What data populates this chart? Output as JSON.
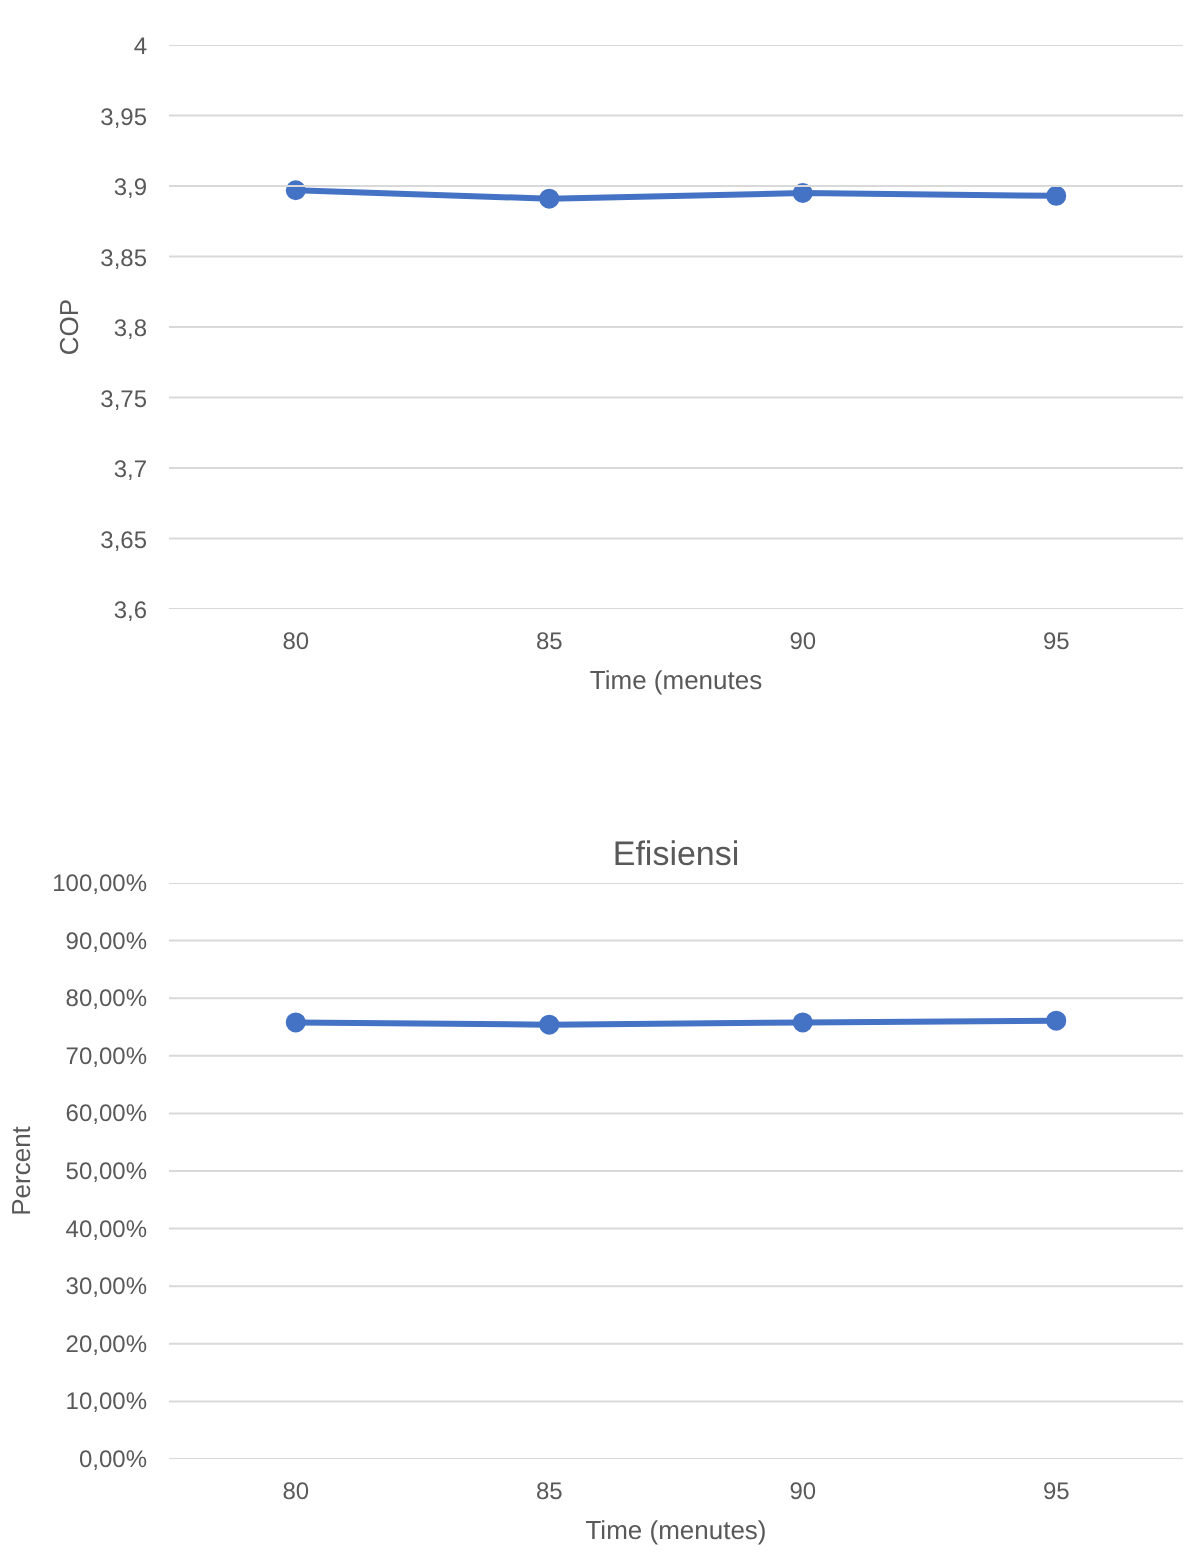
{
  "chart_data": [
    {
      "type": "line",
      "ylabel": "COP",
      "xlabel": "Time (menutes",
      "categories": [
        "80",
        "85",
        "90",
        "95"
      ],
      "series": [
        {
          "color": "#4472c4",
          "values": [
            3.897,
            3.891,
            3.895,
            3.893
          ]
        }
      ],
      "ylim": [
        3.6,
        4
      ],
      "yticks": [
        {
          "value": 3.6,
          "label": "3,6"
        },
        {
          "value": 3.65,
          "label": "3,65"
        },
        {
          "value": 3.7,
          "label": "3,7"
        },
        {
          "value": 3.75,
          "label": "3,75"
        },
        {
          "value": 3.8,
          "label": "3,8"
        },
        {
          "value": 3.85,
          "label": "3,85"
        },
        {
          "value": 3.9,
          "label": "3,9"
        },
        {
          "value": 3.95,
          "label": "3,95"
        },
        4
      ],
      "grid": "y",
      "marker": "circle",
      "line_style": "solid"
    },
    {
      "type": "line",
      "title": "Efisiensi",
      "ylabel": "Percent",
      "xlabel": "Time (menutes)",
      "categories": [
        "80",
        "85",
        "90",
        "95"
      ],
      "series": [
        {
          "color": "#4472c4",
          "values": [
            75.8,
            75.4,
            75.8,
            76.1
          ]
        }
      ],
      "ylim": [
        0,
        100
      ],
      "yticks": [
        {
          "value": 0,
          "label": "0,00%"
        },
        {
          "value": 10,
          "label": "10,00%"
        },
        {
          "value": 20,
          "label": "20,00%"
        },
        {
          "value": 30,
          "label": "30,00%"
        },
        {
          "value": 40,
          "label": "40,00%"
        },
        {
          "value": 50,
          "label": "50,00%"
        },
        {
          "value": 60,
          "label": "60,00%"
        },
        {
          "value": 70,
          "label": "70,00%"
        },
        {
          "value": 80,
          "label": "80,00%"
        },
        {
          "value": 90,
          "label": "90,00%"
        },
        {
          "value": 100,
          "label": "100,00%"
        }
      ],
      "grid": "y",
      "marker": "circle",
      "line_style": "solid"
    }
  ]
}
